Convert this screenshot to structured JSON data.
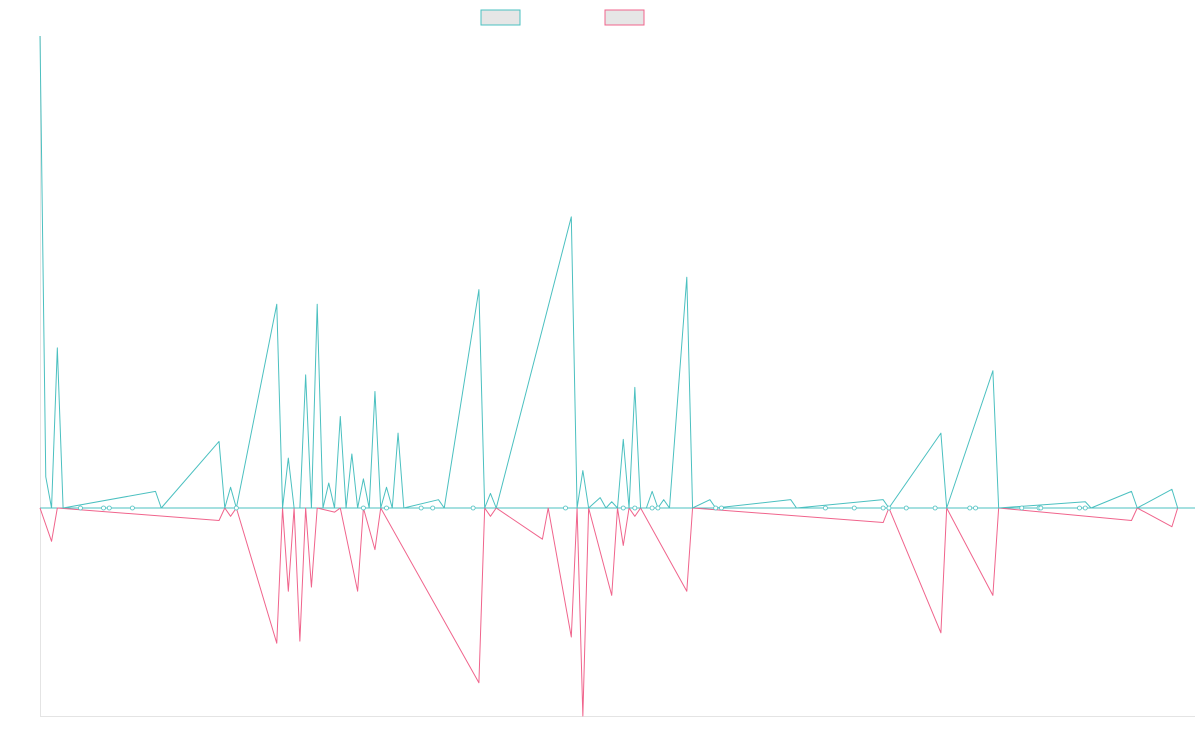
{
  "chart_data": {
    "type": "line",
    "title": "",
    "xlabel": "",
    "ylabel": "",
    "legend": "top-center",
    "grid": false,
    "x_range": [
      0,
      200
    ],
    "ylim": [
      -100,
      227
    ],
    "zero_line": true,
    "series": [
      {
        "color": "#4bc0c0",
        "points": [
          [
            0,
            227
          ],
          [
            1,
            15
          ],
          [
            2,
            0
          ],
          [
            3,
            77
          ],
          [
            4,
            0
          ],
          [
            20,
            8
          ],
          [
            21,
            0
          ],
          [
            31,
            32
          ],
          [
            32,
            0
          ],
          [
            33,
            10
          ],
          [
            34,
            0
          ],
          [
            41,
            98
          ],
          [
            42,
            0
          ],
          [
            43,
            24
          ],
          [
            44,
            0
          ],
          [
            45,
            0
          ],
          [
            46,
            64
          ],
          [
            47,
            0
          ],
          [
            48,
            98
          ],
          [
            49,
            0
          ],
          [
            50,
            12
          ],
          [
            51,
            0
          ],
          [
            52,
            44
          ],
          [
            53,
            0
          ],
          [
            54,
            26
          ],
          [
            55,
            0
          ],
          [
            56,
            14
          ],
          [
            57,
            0
          ],
          [
            58,
            56
          ],
          [
            59,
            0
          ],
          [
            60,
            10
          ],
          [
            61,
            0
          ],
          [
            62,
            36
          ],
          [
            63,
            0
          ],
          [
            69,
            4
          ],
          [
            70,
            0
          ],
          [
            76,
            105
          ],
          [
            77,
            0
          ],
          [
            78,
            7
          ],
          [
            79,
            0
          ],
          [
            92,
            140
          ],
          [
            93,
            0
          ],
          [
            94,
            18
          ],
          [
            95,
            0
          ],
          [
            97,
            5
          ],
          [
            98,
            0
          ],
          [
            99,
            3
          ],
          [
            100,
            0
          ],
          [
            101,
            33
          ],
          [
            102,
            0
          ],
          [
            103,
            58
          ],
          [
            104,
            0
          ],
          [
            105,
            0
          ],
          [
            106,
            8
          ],
          [
            107,
            0
          ],
          [
            108,
            4
          ],
          [
            109,
            0
          ],
          [
            112,
            111
          ],
          [
            113,
            0
          ],
          [
            116,
            4
          ],
          [
            117,
            0
          ],
          [
            130,
            4
          ],
          [
            131,
            0
          ],
          [
            146,
            4
          ],
          [
            147,
            0
          ],
          [
            156,
            36
          ],
          [
            157,
            0
          ],
          [
            165,
            66
          ],
          [
            166,
            0
          ],
          [
            181,
            3
          ],
          [
            182,
            0
          ],
          [
            189,
            8
          ],
          [
            190,
            0
          ],
          [
            196,
            9
          ],
          [
            197,
            0
          ],
          [
            200,
            0
          ]
        ]
      },
      {
        "color": "#f0648c",
        "points": [
          [
            0,
            0
          ],
          [
            2,
            -16
          ],
          [
            3,
            0
          ],
          [
            31,
            -6
          ],
          [
            32,
            0
          ],
          [
            33,
            -4
          ],
          [
            34,
            0
          ],
          [
            41,
            -65
          ],
          [
            42,
            0
          ],
          [
            43,
            -40
          ],
          [
            44,
            0
          ],
          [
            45,
            -64
          ],
          [
            46,
            0
          ],
          [
            47,
            -38
          ],
          [
            48,
            0
          ],
          [
            51,
            -2
          ],
          [
            52,
            0
          ],
          [
            55,
            -40
          ],
          [
            56,
            0
          ],
          [
            58,
            -20
          ],
          [
            59,
            0
          ],
          [
            76,
            -84
          ],
          [
            77,
            0
          ],
          [
            78,
            -4
          ],
          [
            79,
            0
          ],
          [
            87,
            -15
          ],
          [
            88,
            0
          ],
          [
            92,
            -62
          ],
          [
            93,
            0
          ],
          [
            94,
            -100
          ],
          [
            95,
            0
          ],
          [
            99,
            -42
          ],
          [
            100,
            0
          ],
          [
            101,
            -18
          ],
          [
            102,
            0
          ],
          [
            103,
            -4
          ],
          [
            104,
            0
          ],
          [
            112,
            -40
          ],
          [
            113,
            0
          ],
          [
            146,
            -7
          ],
          [
            147,
            0
          ],
          [
            156,
            -60
          ],
          [
            157,
            0
          ],
          [
            165,
            -42
          ],
          [
            166,
            0
          ],
          [
            189,
            -6
          ],
          [
            190,
            0
          ],
          [
            196,
            -9
          ],
          [
            197,
            0
          ],
          [
            200,
            0
          ]
        ]
      }
    ],
    "markers": [
      7,
      11,
      12,
      16,
      34,
      56,
      60,
      66,
      68,
      75,
      91,
      101,
      103,
      106,
      107,
      117,
      118,
      136,
      141,
      146,
      147,
      150,
      155,
      161,
      162,
      170,
      173,
      173.3,
      180,
      181
    ]
  }
}
